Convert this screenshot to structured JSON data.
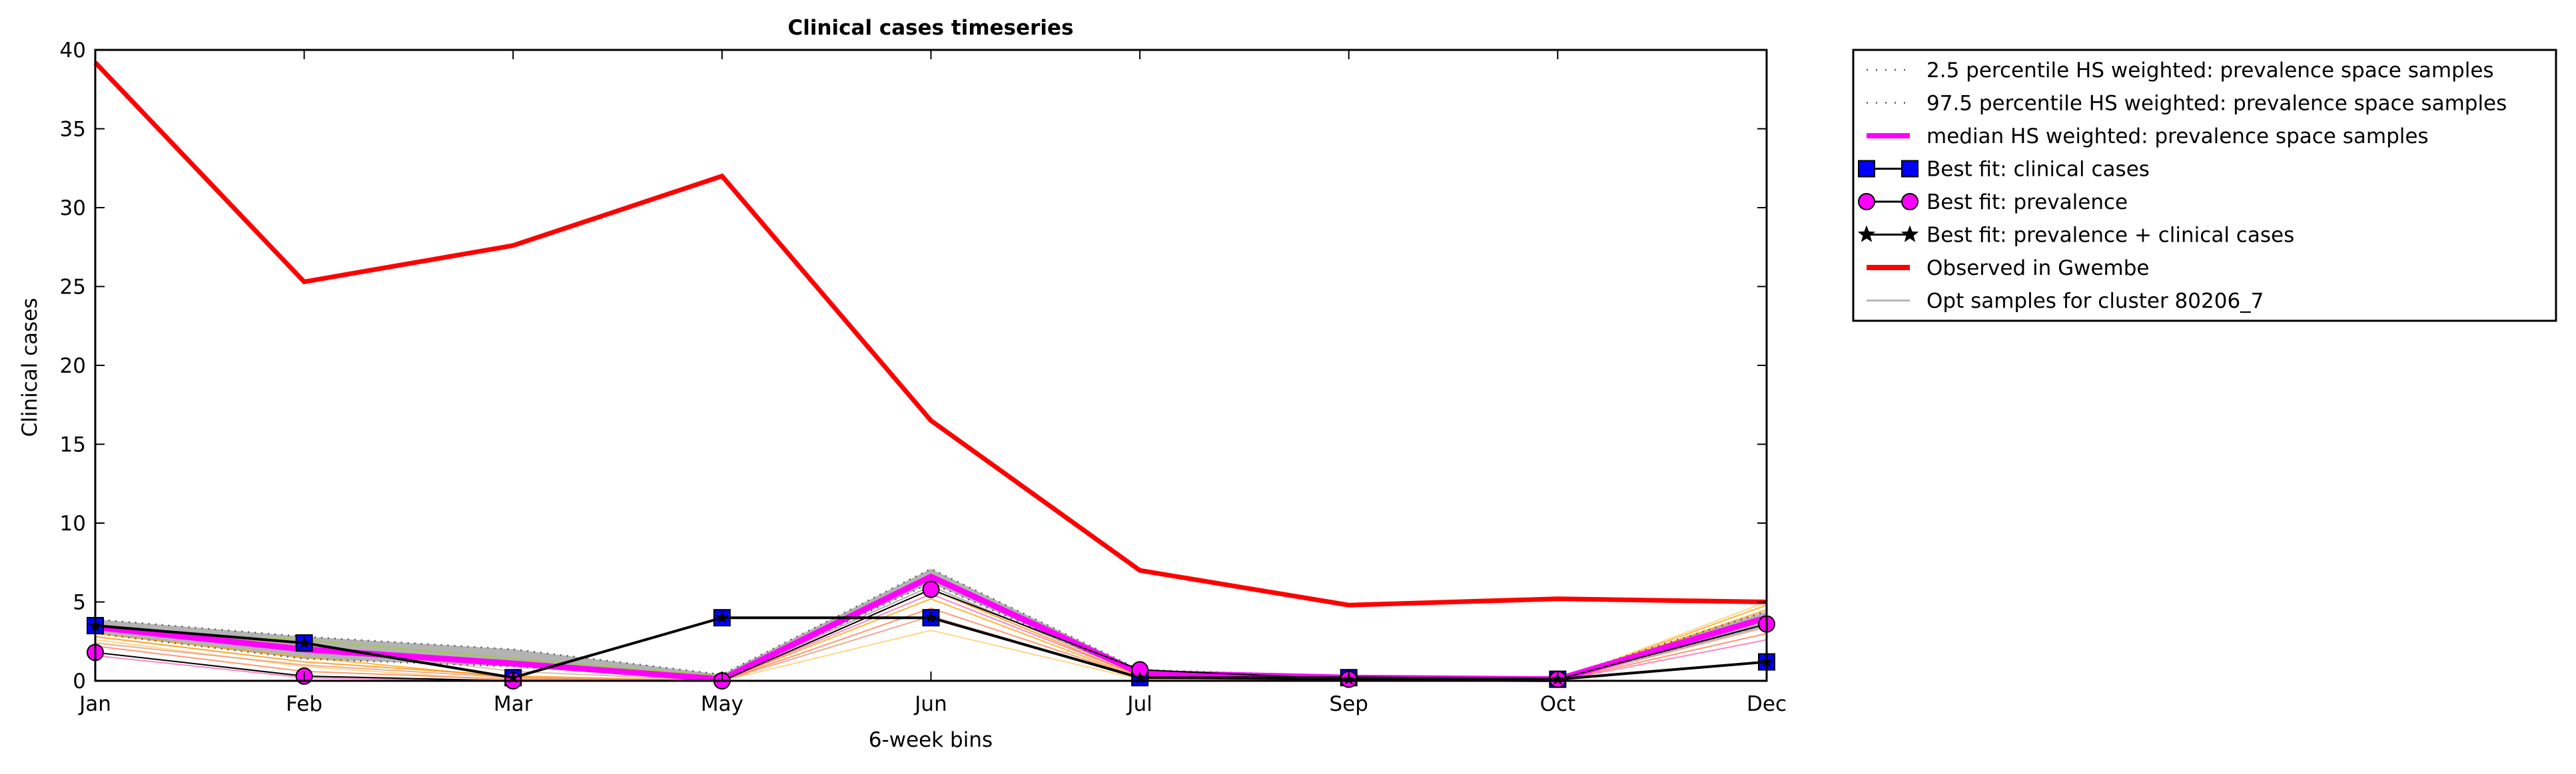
{
  "chart_data": {
    "type": "line",
    "title": "Clinical cases timeseries",
    "xlabel": "6-week bins",
    "ylabel": "Clinical cases",
    "categories": [
      "Jan",
      "Feb",
      "Mar",
      "May",
      "Jun",
      "Jul",
      "Sep",
      "Oct",
      "Dec"
    ],
    "ylim": [
      0,
      40
    ],
    "yticks": [
      "0",
      "5",
      "10",
      "15",
      "20",
      "25",
      "30",
      "35",
      "40"
    ],
    "grid": false,
    "legend_position": "outside-right-top",
    "series": [
      {
        "name": "2.5 percentile HS weighted: prevalence space samples",
        "style": "dotted",
        "color": "#555555",
        "values": [
          3.0,
          1.4,
          0.9,
          0.1,
          6.2,
          0.4,
          0.1,
          0.05,
          3.6
        ]
      },
      {
        "name": "97.5 percentile HS weighted: prevalence space samples",
        "style": "dotted",
        "color": "#555555",
        "values": [
          3.9,
          2.8,
          2.0,
          0.4,
          7.1,
          0.7,
          0.3,
          0.2,
          4.4
        ]
      },
      {
        "name": "median HS weighted: prevalence space samples",
        "style": "thick",
        "color": "#ff00ff",
        "values": [
          3.4,
          2.0,
          1.1,
          0.1,
          6.6,
          0.5,
          0.2,
          0.1,
          4.0
        ]
      },
      {
        "name": "Best fit: clinical cases",
        "style": "square-marker",
        "color": "#0000ff",
        "values": [
          3.5,
          2.4,
          0.2,
          4.0,
          4.0,
          0.2,
          0.2,
          0.1,
          1.2
        ]
      },
      {
        "name": "Best fit: prevalence",
        "style": "circle-marker",
        "color": "#ff00ff",
        "values": [
          1.8,
          0.3,
          0.0,
          0.0,
          5.8,
          0.7,
          0.1,
          0.1,
          3.6
        ]
      },
      {
        "name": "Best fit: prevalence + clinical cases",
        "style": "star-marker",
        "color": "#000000",
        "values": [
          3.5,
          2.4,
          0.2,
          4.0,
          4.0,
          0.2,
          0.1,
          0.1,
          1.2
        ]
      },
      {
        "name": "Observed in Gwembe",
        "style": "thick",
        "color": "#ff0000",
        "values": [
          39.2,
          25.3,
          27.6,
          32.0,
          16.5,
          7.0,
          4.8,
          5.2,
          5.0
        ]
      },
      {
        "name": "Opt samples for cluster 80206_7",
        "style": "thin",
        "color": "#aaaaaa",
        "values": [
          3.3,
          1.8,
          1.0,
          0.1,
          6.0,
          0.4,
          0.1,
          0.05,
          3.5
        ]
      }
    ],
    "sample_lines": [
      {
        "color": "#ffa500",
        "values": [
          3.0,
          1.5,
          0.2,
          0.0,
          5.2,
          0.2,
          0.1,
          0.0,
          4.8
        ]
      },
      {
        "color": "#ffcc66",
        "values": [
          2.6,
          0.9,
          0.0,
          0.0,
          3.2,
          0.1,
          0.0,
          0.0,
          5.0
        ]
      },
      {
        "color": "#ff7f50",
        "values": [
          2.2,
          0.6,
          0.1,
          0.0,
          4.6,
          0.2,
          0.0,
          0.0,
          3.0
        ]
      },
      {
        "color": "#ff69b4",
        "values": [
          1.6,
          0.2,
          0.0,
          0.0,
          5.5,
          0.3,
          0.0,
          0.0,
          2.6
        ]
      },
      {
        "color": "#d2b48c",
        "values": [
          3.6,
          2.2,
          0.6,
          0.0,
          6.8,
          0.5,
          0.1,
          0.0,
          4.2
        ]
      },
      {
        "color": "#9acd32",
        "values": [
          3.2,
          2.6,
          1.4,
          0.3,
          6.4,
          0.6,
          0.2,
          0.1,
          3.8
        ]
      },
      {
        "color": "#ff8c00",
        "values": [
          2.8,
          1.2,
          0.3,
          0.0,
          5.8,
          0.3,
          0.1,
          0.0,
          4.5
        ]
      },
      {
        "color": "#e9967a",
        "values": [
          2.4,
          1.0,
          0.2,
          0.0,
          4.1,
          0.2,
          0.0,
          0.0,
          3.4
        ]
      }
    ]
  }
}
